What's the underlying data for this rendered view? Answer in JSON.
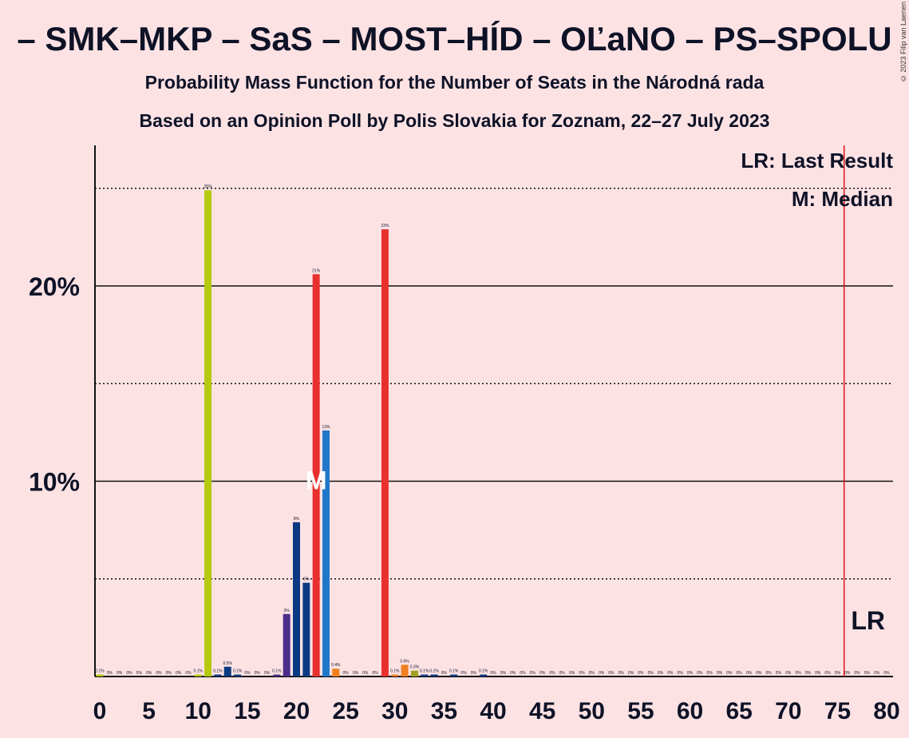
{
  "title": "– SMK–MKP – SaS – MOST–HÍD – OĽaNO – PS–SPOLU",
  "subtitle_1": "Probability Mass Function for the Number of Seats in the Národná rada",
  "subtitle_2": "Based on an Opinion Poll by Polis Slovakia for Zoznam, 22–27 July 2023",
  "copyright": "© 2023 Filip van Laenen",
  "legend": {
    "last_result": "LR: Last Result",
    "median": "M: Median"
  },
  "markers": {
    "median_label": "M",
    "last_result_label": "LR",
    "median_seat": 22,
    "last_result_seat": 76
  },
  "colors": {
    "background": "#fde2e4",
    "lime": "#b5c90d",
    "navy": "#0b3a82",
    "purple": "#4b2d8a",
    "red": "#e8302e",
    "blue": "#1f77c9",
    "orange": "#f08020",
    "olive": "#a0a020",
    "lr_line": "#dd1111"
  },
  "chart_data": {
    "type": "bar",
    "xlabel": "",
    "ylabel": "",
    "xlim": [
      0,
      80
    ],
    "ylim": [
      0,
      27
    ],
    "x_ticks": [
      0,
      5,
      10,
      15,
      20,
      25,
      30,
      35,
      40,
      45,
      50,
      55,
      60,
      65,
      70,
      75,
      80
    ],
    "y_ticks": [
      {
        "value": 10,
        "label": "10%"
      },
      {
        "value": 20,
        "label": "20%"
      }
    ],
    "y_minor_gridlines": [
      5,
      15,
      25
    ],
    "grid": true,
    "bars": [
      {
        "x": 0,
        "value": 0.1,
        "label": "0.1%",
        "color": "lime"
      },
      {
        "x": 1,
        "value": 0,
        "label": "0%",
        "color": "lime"
      },
      {
        "x": 2,
        "value": 0,
        "label": "0%",
        "color": "lime"
      },
      {
        "x": 3,
        "value": 0,
        "label": "0%",
        "color": "lime"
      },
      {
        "x": 4,
        "value": 0,
        "label": "0%",
        "color": "lime"
      },
      {
        "x": 5,
        "value": 0,
        "label": "0%",
        "color": "lime"
      },
      {
        "x": 6,
        "value": 0,
        "label": "0%",
        "color": "lime"
      },
      {
        "x": 7,
        "value": 0,
        "label": "0%",
        "color": "lime"
      },
      {
        "x": 8,
        "value": 0,
        "label": "0%",
        "color": "lime"
      },
      {
        "x": 9,
        "value": 0,
        "label": "0%",
        "color": "lime"
      },
      {
        "x": 10,
        "value": 0.1,
        "label": "0.1%",
        "color": "lime"
      },
      {
        "x": 11,
        "value": 24.9,
        "label": "25%",
        "color": "lime"
      },
      {
        "x": 12,
        "value": 0.1,
        "label": "0.1%",
        "color": "navy"
      },
      {
        "x": 13,
        "value": 0.5,
        "label": "0.5%",
        "color": "navy"
      },
      {
        "x": 14,
        "value": 0.1,
        "label": "0.1%",
        "color": "navy"
      },
      {
        "x": 15,
        "value": 0,
        "label": "0%",
        "color": "navy"
      },
      {
        "x": 16,
        "value": 0,
        "label": "0%",
        "color": "navy"
      },
      {
        "x": 17,
        "value": 0,
        "label": "0%",
        "color": "navy"
      },
      {
        "x": 18,
        "value": 0.1,
        "label": "0.1%",
        "color": "purple"
      },
      {
        "x": 19,
        "value": 3.2,
        "label": "3%",
        "color": "purple"
      },
      {
        "x": 20,
        "value": 7.9,
        "label": "8%",
        "color": "navy"
      },
      {
        "x": 21,
        "value": 4.8,
        "label": "5%",
        "color": "navy"
      },
      {
        "x": 22,
        "value": 20.6,
        "label": "21%",
        "color": "red"
      },
      {
        "x": 23,
        "value": 12.6,
        "label": "13%",
        "color": "blue"
      },
      {
        "x": 24,
        "value": 0.4,
        "label": "0.4%",
        "color": "orange"
      },
      {
        "x": 25,
        "value": 0,
        "label": "0%",
        "color": "orange"
      },
      {
        "x": 26,
        "value": 0,
        "label": "0%",
        "color": "orange"
      },
      {
        "x": 27,
        "value": 0,
        "label": "0%",
        "color": "orange"
      },
      {
        "x": 28,
        "value": 0,
        "label": "0%",
        "color": "red"
      },
      {
        "x": 29,
        "value": 22.9,
        "label": "23%",
        "color": "red"
      },
      {
        "x": 30,
        "value": 0.1,
        "label": "0.1%",
        "color": "orange"
      },
      {
        "x": 31,
        "value": 0.6,
        "label": "0.6%",
        "color": "orange"
      },
      {
        "x": 32,
        "value": 0.3,
        "label": "0.3%",
        "color": "olive"
      },
      {
        "x": 33,
        "value": 0.1,
        "label": "0.1%",
        "color": "navy"
      },
      {
        "x": 34,
        "value": 0.1,
        "label": "0.1%",
        "color": "navy"
      },
      {
        "x": 35,
        "value": 0,
        "label": "0%",
        "color": "navy"
      },
      {
        "x": 36,
        "value": 0.1,
        "label": "0.1%",
        "color": "navy"
      },
      {
        "x": 37,
        "value": 0,
        "label": "0%",
        "color": "navy"
      },
      {
        "x": 38,
        "value": 0,
        "label": "0%",
        "color": "navy"
      },
      {
        "x": 39,
        "value": 0.1,
        "label": "0.1%",
        "color": "navy"
      },
      {
        "x": 40,
        "value": 0,
        "label": "0%",
        "color": "navy"
      },
      {
        "x": 41,
        "value": 0,
        "label": "0%",
        "color": "navy"
      },
      {
        "x": 42,
        "value": 0,
        "label": "0%",
        "color": "navy"
      },
      {
        "x": 43,
        "value": 0,
        "label": "0%",
        "color": "navy"
      },
      {
        "x": 44,
        "value": 0,
        "label": "0%",
        "color": "navy"
      },
      {
        "x": 45,
        "value": 0,
        "label": "0%",
        "color": "navy"
      },
      {
        "x": 46,
        "value": 0,
        "label": "0%",
        "color": "navy"
      },
      {
        "x": 47,
        "value": 0,
        "label": "0%",
        "color": "navy"
      },
      {
        "x": 48,
        "value": 0,
        "label": "0%",
        "color": "navy"
      },
      {
        "x": 49,
        "value": 0,
        "label": "0%",
        "color": "navy"
      },
      {
        "x": 50,
        "value": 0,
        "label": "0%",
        "color": "navy"
      },
      {
        "x": 51,
        "value": 0,
        "label": "0%",
        "color": "navy"
      },
      {
        "x": 52,
        "value": 0,
        "label": "0%",
        "color": "navy"
      },
      {
        "x": 53,
        "value": 0,
        "label": "0%",
        "color": "navy"
      },
      {
        "x": 54,
        "value": 0,
        "label": "0%",
        "color": "navy"
      },
      {
        "x": 55,
        "value": 0,
        "label": "0%",
        "color": "navy"
      },
      {
        "x": 56,
        "value": 0,
        "label": "0%",
        "color": "navy"
      },
      {
        "x": 57,
        "value": 0,
        "label": "0%",
        "color": "navy"
      },
      {
        "x": 58,
        "value": 0,
        "label": "0%",
        "color": "navy"
      },
      {
        "x": 59,
        "value": 0,
        "label": "0%",
        "color": "navy"
      },
      {
        "x": 60,
        "value": 0,
        "label": "0%",
        "color": "navy"
      },
      {
        "x": 61,
        "value": 0,
        "label": "0%",
        "color": "navy"
      },
      {
        "x": 62,
        "value": 0,
        "label": "0%",
        "color": "navy"
      },
      {
        "x": 63,
        "value": 0,
        "label": "0%",
        "color": "navy"
      },
      {
        "x": 64,
        "value": 0,
        "label": "0%",
        "color": "navy"
      },
      {
        "x": 65,
        "value": 0,
        "label": "0%",
        "color": "navy"
      },
      {
        "x": 66,
        "value": 0,
        "label": "0%",
        "color": "navy"
      },
      {
        "x": 67,
        "value": 0,
        "label": "0%",
        "color": "navy"
      },
      {
        "x": 68,
        "value": 0,
        "label": "0%",
        "color": "navy"
      },
      {
        "x": 69,
        "value": 0,
        "label": "0%",
        "color": "navy"
      },
      {
        "x": 70,
        "value": 0,
        "label": "0%",
        "color": "navy"
      },
      {
        "x": 71,
        "value": 0,
        "label": "0%",
        "color": "navy"
      },
      {
        "x": 72,
        "value": 0,
        "label": "0%",
        "color": "navy"
      },
      {
        "x": 73,
        "value": 0,
        "label": "0%",
        "color": "navy"
      },
      {
        "x": 74,
        "value": 0,
        "label": "0%",
        "color": "navy"
      },
      {
        "x": 75,
        "value": 0,
        "label": "0%",
        "color": "navy"
      },
      {
        "x": 76,
        "value": 0,
        "label": "0%",
        "color": "navy"
      },
      {
        "x": 77,
        "value": 0,
        "label": "0%",
        "color": "navy"
      },
      {
        "x": 78,
        "value": 0,
        "label": "0%",
        "color": "navy"
      },
      {
        "x": 79,
        "value": 0,
        "label": "0%",
        "color": "navy"
      },
      {
        "x": 80,
        "value": 0,
        "label": "0%",
        "color": "navy"
      }
    ]
  }
}
